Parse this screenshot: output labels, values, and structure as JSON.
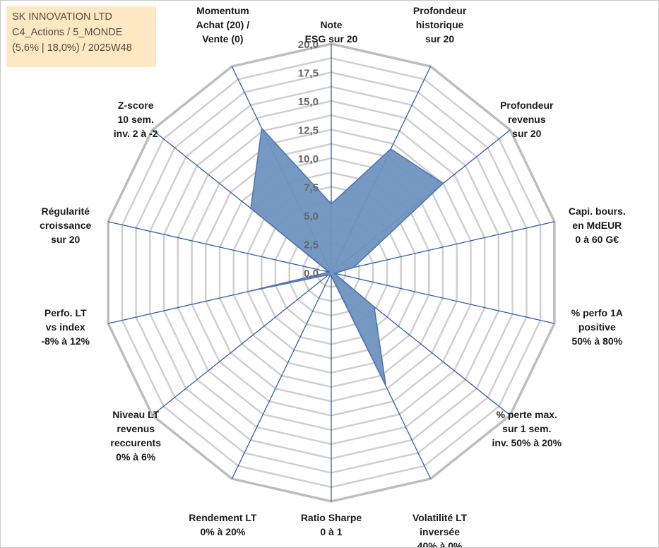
{
  "info": {
    "line1": "SK INNOVATION LTD",
    "line2": "C4_Actions / 5_MONDE",
    "line3": "(5,6% | 18,0%) / 2025W48"
  },
  "colors": {
    "fill": "#6f93c0",
    "stroke": "#4a72b0",
    "spoke": "#2f5da8",
    "grid_outer": "#bdbdbd",
    "grid_inner": "#cfcfcf",
    "info_bg": "#fde8c4"
  },
  "chart_data": {
    "type": "radar",
    "rlim": [
      0,
      20
    ],
    "grid_step": 1.25,
    "tick_labels": [
      "0,0",
      "2,5",
      "5,0",
      "7,5",
      "10,0",
      "12,5",
      "15,0",
      "17,5",
      "20,0"
    ],
    "axes": [
      [
        "Note",
        "ESG sur 20"
      ],
      [
        "Profondeur",
        "historique",
        "sur 20"
      ],
      [
        "Profondeur",
        "revenus",
        "sur 20"
      ],
      [
        "Capi. bours.",
        "en MdEUR",
        "0 à 60 G€"
      ],
      [
        "% perfo 1A",
        "positive",
        "50% à 80%"
      ],
      [
        "% perte max.",
        "sur 1 sem.",
        "inv. 50% à 20%"
      ],
      [
        "Volatilité LT",
        "inversée",
        "40% à 0%"
      ],
      [
        "Ratio Sharpe",
        "0 à 1"
      ],
      [
        "Rendement LT",
        "0% à 20%"
      ],
      [
        "Niveau LT",
        "revenus",
        "reccurents",
        "0% à 6%"
      ],
      [
        "Perfo. LT",
        "vs index",
        "-8% à 12%"
      ],
      [
        "Régularité",
        "croissance",
        "sur 20"
      ],
      [
        "Z-score",
        "10 sem.",
        "inv. 2 à -2"
      ],
      [
        "Momentum",
        "Achat (20) /",
        "Vente (0)"
      ]
    ],
    "values": [
      6.0,
      12.0,
      12.5,
      2.0,
      0.3,
      4.8,
      11.0,
      0.3,
      0.3,
      0.3,
      7.5,
      0.2,
      9.0,
      14.0
    ],
    "legend": "none",
    "grid": true
  }
}
